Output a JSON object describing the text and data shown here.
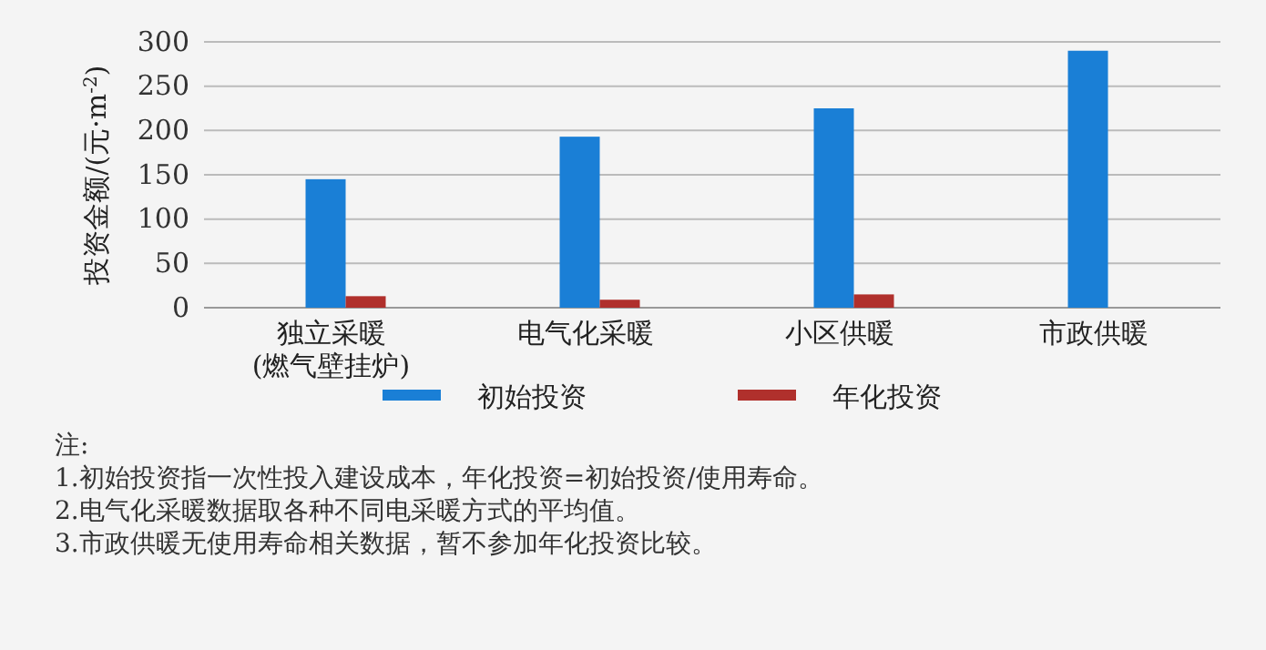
{
  "chart_data": {
    "type": "bar",
    "ylabel": "投资金额/(元·m$^{-2}$)",
    "categories": [
      "独立采暖\n(燃气壁挂炉)",
      "电气化采暖",
      "小区供暖",
      "市政供暖"
    ],
    "series": [
      {
        "name": "初始投资",
        "color": "#1a7fd6",
        "values": [
          145,
          193,
          225,
          290
        ]
      },
      {
        "name": "年化投资",
        "color": "#b0302c",
        "values": [
          13,
          9,
          15,
          null
        ]
      }
    ],
    "ylim": [
      0,
      300
    ],
    "yticks": [
      0,
      50,
      100,
      150,
      200,
      250,
      300
    ],
    "grid": "y",
    "legend": "bottom",
    "annotations": [
      "注:",
      "1.初始投资指一次性投入建设成本，年化投资=初始投资/使用寿命。",
      "2.电气化采暖数据取各种不同电采暖方式的平均值。",
      "3.市政供暖无使用寿命相关数据，暂不参加年化投资比较。"
    ]
  }
}
